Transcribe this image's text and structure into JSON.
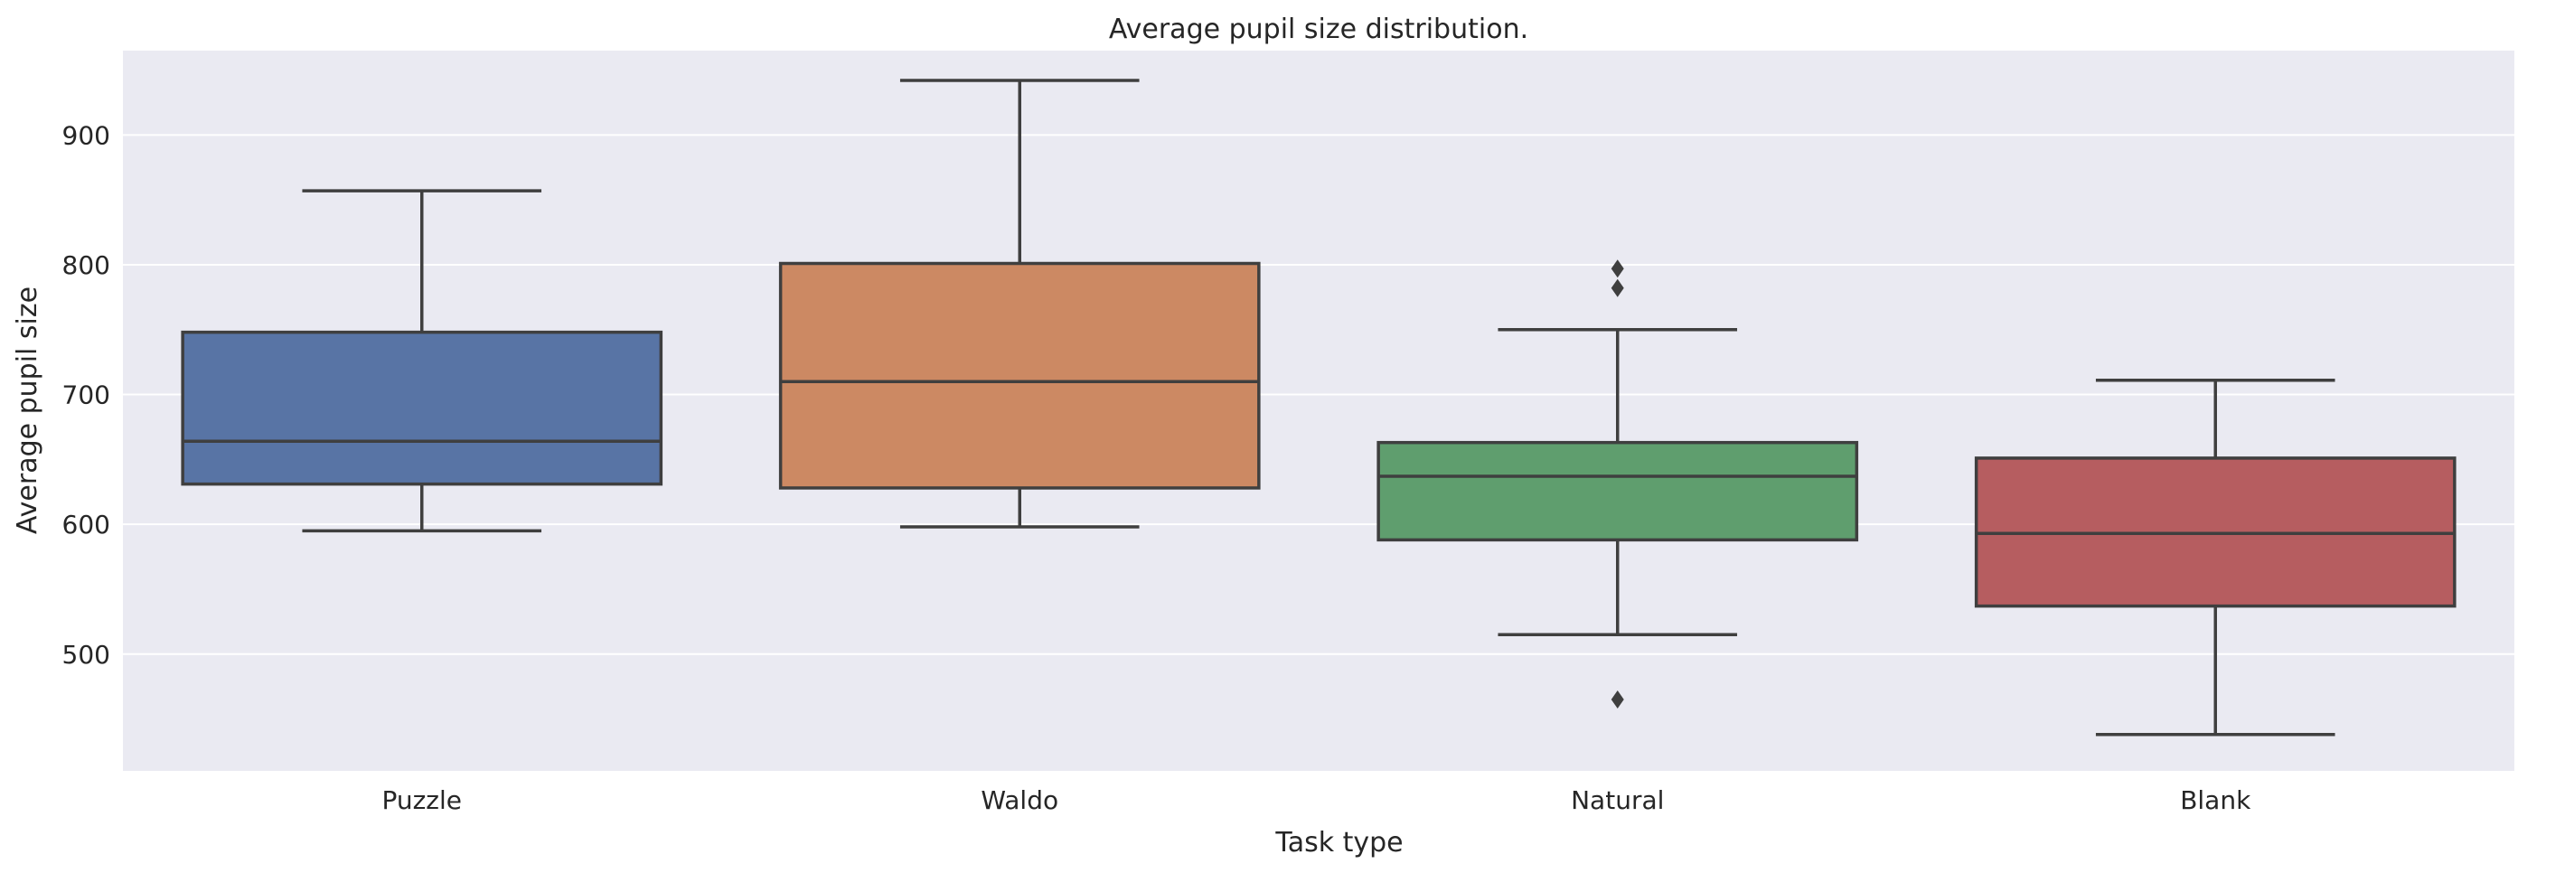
{
  "chart_data": {
    "type": "box",
    "title": "Average pupil size distribution.",
    "xlabel": "Task type",
    "ylabel": "Average pupil size",
    "categories": [
      "Puzzle",
      "Waldo",
      "Natural",
      "Blank"
    ],
    "ylim": [
      410,
      965
    ],
    "yticks": [
      500,
      600,
      700,
      800,
      900
    ],
    "grid": true,
    "boxes": [
      {
        "category": "Puzzle",
        "whisker_low": 595,
        "q1": 631,
        "median": 664,
        "q3": 748,
        "whisker_high": 857,
        "outliers": [],
        "color": "#5874a5"
      },
      {
        "category": "Waldo",
        "whisker_low": 598,
        "q1": 628,
        "median": 710,
        "q3": 801,
        "whisker_high": 942,
        "outliers": [],
        "color": "#cc8963"
      },
      {
        "category": "Natural",
        "whisker_low": 515,
        "q1": 588,
        "median": 637,
        "q3": 663,
        "whisker_high": 750,
        "outliers": [
          797,
          782,
          465
        ],
        "color": "#5f9e6e"
      },
      {
        "category": "Blank",
        "whisker_low": 438,
        "q1": 537,
        "median": 593,
        "q3": 651,
        "whisker_high": 711,
        "outliers": [],
        "color": "#b65d60"
      }
    ],
    "colors": {
      "background": "#eaeaf2",
      "grid": "#ffffff",
      "line": "#3f3f3f"
    }
  }
}
